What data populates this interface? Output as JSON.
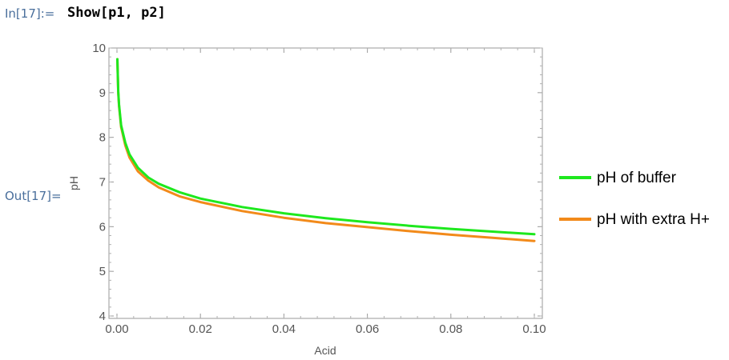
{
  "notebook": {
    "input_label": "In[17]:=",
    "input_code": "Show[p1, p2]",
    "output_label": "Out[17]="
  },
  "chart_data": {
    "type": "line",
    "xlabel": "Acid",
    "ylabel": "pH",
    "xlim": [
      0,
      0.1
    ],
    "ylim": [
      4,
      10
    ],
    "x_ticks": [
      0.0,
      0.02,
      0.04,
      0.06,
      0.08,
      0.1
    ],
    "x_tick_labels": [
      "0.00",
      "0.02",
      "0.04",
      "0.06",
      "0.08",
      "0.10"
    ],
    "y_ticks": [
      4,
      5,
      6,
      7,
      8,
      9,
      10
    ],
    "y_tick_labels": [
      "4",
      "5",
      "6",
      "7",
      "8",
      "9",
      "10"
    ],
    "grid": false,
    "legend_position": "right",
    "series": [
      {
        "name": "pH of buffer",
        "color": "#1ee81e",
        "x": [
          0.0001,
          0.0003,
          0.0005,
          0.001,
          0.002,
          0.003,
          0.005,
          0.0075,
          0.01,
          0.015,
          0.02,
          0.03,
          0.04,
          0.05,
          0.06,
          0.07,
          0.08,
          0.09,
          0.1
        ],
        "y": [
          9.75,
          9.03,
          8.73,
          8.27,
          7.88,
          7.62,
          7.32,
          7.1,
          6.96,
          6.77,
          6.63,
          6.44,
          6.3,
          6.19,
          6.1,
          6.02,
          5.95,
          5.89,
          5.83
        ]
      },
      {
        "name": "pH with extra H+",
        "color": "#f28a1a",
        "x": [
          0.0001,
          0.0003,
          0.0005,
          0.001,
          0.002,
          0.003,
          0.005,
          0.0075,
          0.01,
          0.015,
          0.02,
          0.03,
          0.04,
          0.05,
          0.06,
          0.07,
          0.08,
          0.09,
          0.1
        ],
        "y": [
          9.75,
          9.0,
          8.7,
          8.23,
          7.82,
          7.55,
          7.24,
          7.03,
          6.88,
          6.68,
          6.55,
          6.35,
          6.2,
          6.08,
          5.99,
          5.9,
          5.82,
          5.75,
          5.68
        ]
      }
    ]
  }
}
